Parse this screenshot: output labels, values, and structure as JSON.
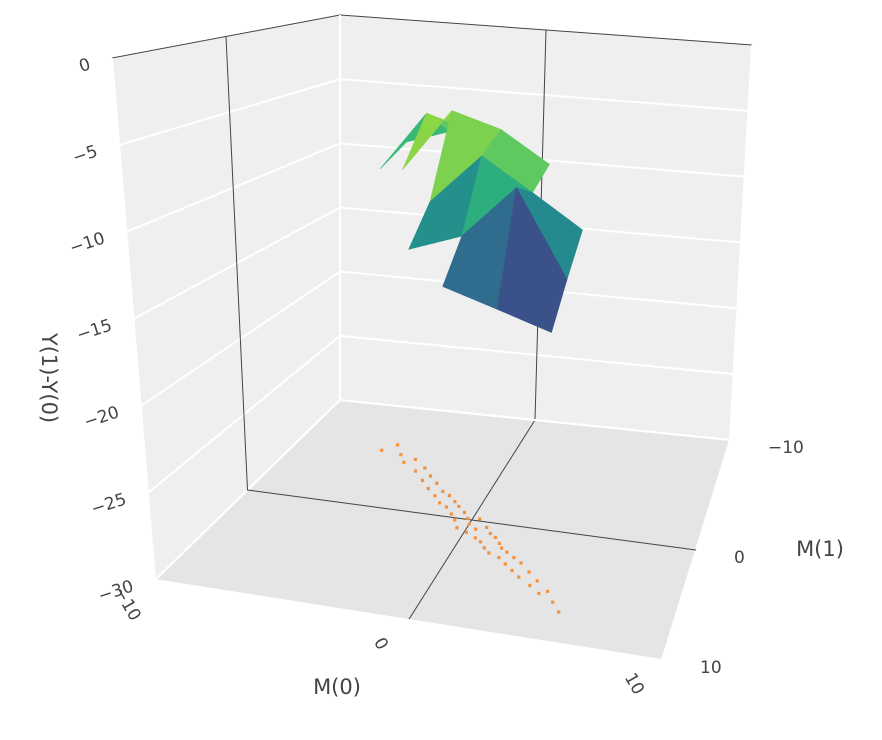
{
  "chart_data": {
    "type": "surface3d",
    "x_label": "M(0)",
    "y_label": "M(1)",
    "z_label": "Y(1)-Y(0)",
    "xlim": [
      -10,
      10
    ],
    "ylim": [
      -10,
      10
    ],
    "zlim": [
      -30,
      0
    ],
    "xticks": [
      {
        "value": -10,
        "label": "−10"
      },
      0,
      10
    ],
    "yticks": [
      {
        "value": -10,
        "label": "−10"
      },
      0,
      10
    ],
    "zticks": [
      {
        "value": -30,
        "label": "−30"
      },
      {
        "value": -25,
        "label": "−25"
      },
      {
        "value": -20,
        "label": "−20"
      },
      {
        "value": -15,
        "label": "−15"
      },
      {
        "value": -10,
        "label": "−10"
      },
      {
        "value": -5,
        "label": "−5"
      },
      0
    ],
    "grid": true,
    "zeroline": true,
    "surface": {
      "x": [
        -5,
        -3,
        -1,
        1,
        3,
        5
      ],
      "y": [
        -6,
        -3,
        0,
        3,
        6,
        9
      ],
      "z": [
        [
          -8,
          -7,
          -8,
          null,
          null,
          null
        ],
        [
          -9,
          -5,
          -6,
          -9,
          null,
          null
        ],
        [
          null,
          -8,
          -4,
          -5,
          -7,
          null
        ],
        [
          null,
          null,
          -9,
          -6,
          -8,
          -10
        ],
        [
          null,
          null,
          -11,
          -10,
          -7,
          -12
        ],
        [
          null,
          null,
          null,
          -12,
          -13,
          -14
        ]
      ],
      "colorscale": [
        "#440154",
        "#482878",
        "#3e4989",
        "#31688e",
        "#26828e",
        "#1f9e89",
        "#35b779",
        "#6ece58",
        "#b5de2b",
        "#fde725"
      ]
    },
    "scatter": {
      "color": "#f5923e",
      "x": [
        -6,
        -5.5,
        -5,
        -4.6,
        -4.2,
        -3.8,
        -3.5,
        -3.2,
        -3,
        -2.7,
        -2.5,
        -2.2,
        -2,
        -1.8,
        -1.6,
        -1.4,
        -1.2,
        -1,
        -0.9,
        -0.7,
        -0.5,
        -0.4,
        -0.2,
        0,
        0.1,
        0.3,
        0.4,
        0.6,
        0.8,
        0.9,
        1.1,
        1.2,
        1.4,
        1.5,
        1.7,
        1.9,
        2,
        2.2,
        2.4,
        2.6,
        2.8,
        3,
        3.2,
        3.5,
        3.8,
        4,
        4.3,
        4.6,
        5,
        5.4
      ],
      "y": [
        -5.5,
        -6.2,
        -5.3,
        -4.6,
        -5.0,
        -3.9,
        -4.3,
        -3.1,
        -3.6,
        -2.4,
        -3.0,
        -1.8,
        -2.3,
        -1.2,
        -2.0,
        -0.9,
        -1.5,
        -0.3,
        -1.1,
        0.2,
        -0.6,
        0.9,
        -0.1,
        0.4,
        1.2,
        -0.2,
        0.8,
        1.6,
        0.5,
        1.9,
        1.0,
        2.4,
        1.3,
        2.8,
        1.8,
        2.2,
        3.1,
        2.5,
        3.6,
        2.9,
        4.1,
        3.3,
        4.6,
        4.0,
        5.2,
        4.7,
        5.8,
        5.5,
        6.4,
        7.2
      ]
    }
  }
}
